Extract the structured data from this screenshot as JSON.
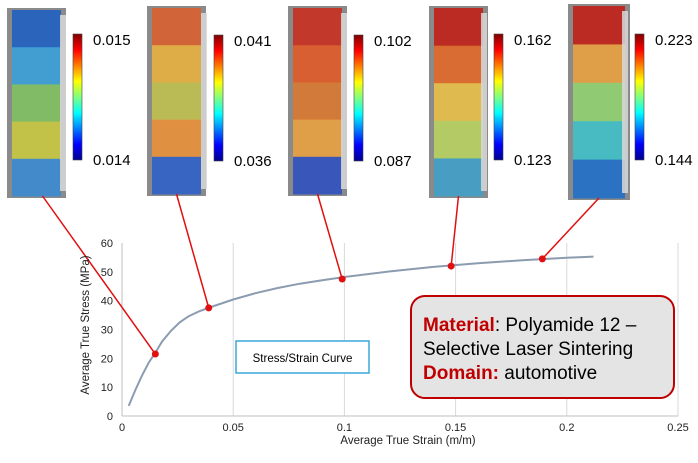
{
  "chart_data": {
    "type": "line",
    "title": "",
    "xlabel": "Average True Strain (m/m)",
    "ylabel": "Average True Stress (MPa)",
    "xlim": [
      0,
      0.25
    ],
    "ylim": [
      0,
      60
    ],
    "x_ticks": [
      "0",
      "0.05",
      "0.1",
      "0.15",
      "0.2",
      "0.25"
    ],
    "y_ticks": [
      "0",
      "10",
      "20",
      "30",
      "40",
      "50",
      "60"
    ],
    "grid": "vertical",
    "series": [
      {
        "name": "Stress/Strain Curve",
        "color": "#8c9cb0",
        "x": [
          0.003,
          0.006,
          0.009,
          0.012,
          0.015,
          0.018,
          0.022,
          0.026,
          0.03,
          0.035,
          0.04,
          0.05,
          0.06,
          0.07,
          0.08,
          0.09,
          0.1,
          0.12,
          0.14,
          0.16,
          0.18,
          0.2,
          0.212
        ],
        "y": [
          3.5,
          9,
          14,
          18.5,
          22,
          25.8,
          29.5,
          32.5,
          34.6,
          36.4,
          37.8,
          40.4,
          42.6,
          44.4,
          45.9,
          47.1,
          48.2,
          50.1,
          51.7,
          53.0,
          54.0,
          54.9,
          55.3
        ]
      }
    ],
    "highlighted_points": [
      {
        "x": 0.015,
        "y": 21.5
      },
      {
        "x": 0.039,
        "y": 37.5
      },
      {
        "x": 0.099,
        "y": 47.5
      },
      {
        "x": 0.148,
        "y": 52
      },
      {
        "x": 0.189,
        "y": 54.5
      }
    ],
    "legend": "Stress/Strain Curve",
    "strain_field_panels": [
      {
        "max": "0.015",
        "min": "0.014",
        "colors": [
          "#2060c0",
          "#3aa0d8",
          "#80c060",
          "#c8c840",
          "#3a8ad0"
        ]
      },
      {
        "max": "0.041",
        "min": "0.036",
        "colors": [
          "#d86030",
          "#e8b040",
          "#c0c050",
          "#e89038",
          "#3060c8"
        ]
      },
      {
        "max": "0.102",
        "min": "0.087",
        "colors": [
          "#c83020",
          "#e05a28",
          "#d87830",
          "#e8a040",
          "#3050c0"
        ]
      },
      {
        "max": "0.162",
        "min": "0.123",
        "colors": [
          "#c02018",
          "#e06828",
          "#e8c048",
          "#b8d060",
          "#40a0c8"
        ]
      },
      {
        "max": "0.223",
        "min": "0.144",
        "colors": [
          "#c02018",
          "#e8a040",
          "#90d070",
          "#40c0c8",
          "#2070c8"
        ]
      }
    ],
    "annotation": {
      "material_label": "Material",
      "material_value": ": Polyamide 12 –",
      "material_value_2": "Selective Laser Sintering",
      "domain_label": "Domain:",
      "domain_value": " automotive"
    },
    "colors": {
      "curve": "#8c9cb0",
      "marker": "#e01010",
      "leader": "#e01010",
      "annotation_border": "#c00000",
      "annotation_fill": "#e4e4e4",
      "caption_border": "#3aa8d8",
      "grid": "#d9d9d9"
    }
  }
}
